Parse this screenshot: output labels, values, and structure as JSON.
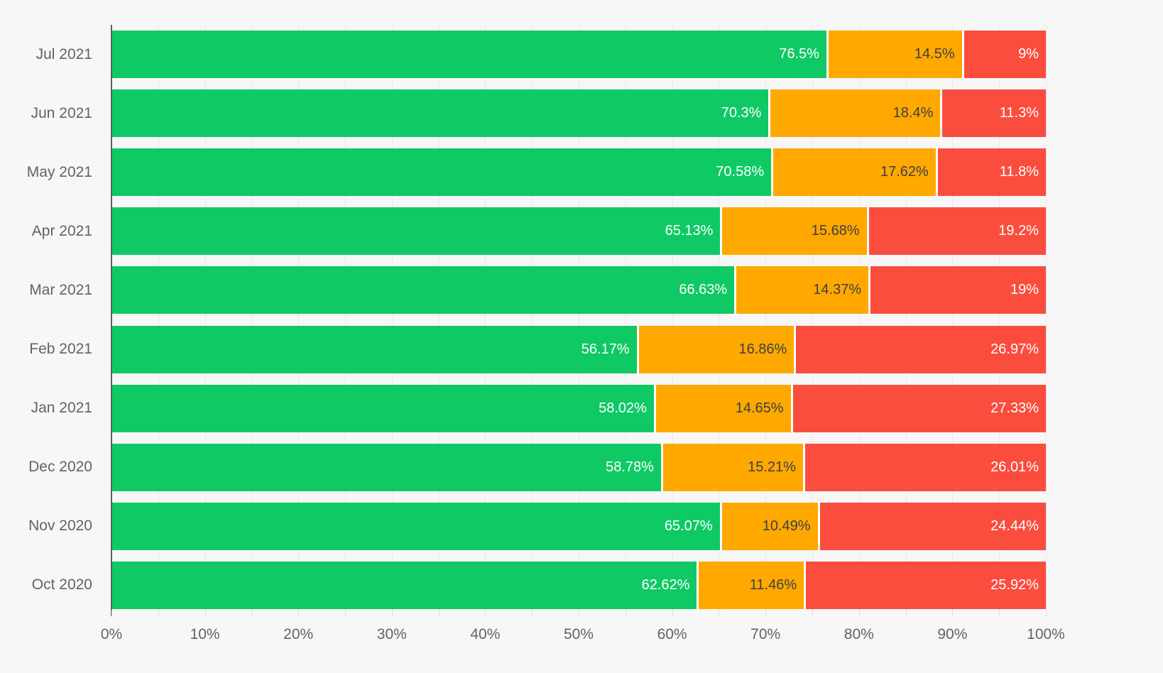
{
  "colors": {
    "background": "#f7f7f8",
    "green": "#0fc965",
    "orange": "#ffa800",
    "red": "#fa4d3e",
    "axis_line": "#5b6066",
    "gridline": "#e9e9ea",
    "axis_text": "#5f6368",
    "label_on_orange": "#3d3f42",
    "label_on_green_red": "#ffffff"
  },
  "chart_data": {
    "type": "bar",
    "orientation": "horizontal",
    "stacked": true,
    "title": "",
    "xlabel": "",
    "ylabel": "",
    "xlim": [
      0,
      100
    ],
    "x_tick_labels": [
      "0%",
      "10%",
      "20%",
      "30%",
      "40%",
      "50%",
      "60%",
      "70%",
      "80%",
      "90%",
      "100%"
    ],
    "x_minor_grid_step_percent": 5,
    "grid": true,
    "legend": "none",
    "categories": [
      "Jul 2021",
      "Jun 2021",
      "May 2021",
      "Apr 2021",
      "Mar 2021",
      "Feb 2021",
      "Jan 2021",
      "Dec 2020",
      "Nov 2020",
      "Oct 2020"
    ],
    "series": [
      {
        "name": "green",
        "color": "#0fc965",
        "values": [
          76.5,
          70.3,
          70.58,
          65.13,
          66.63,
          56.17,
          58.02,
          58.78,
          65.07,
          62.62
        ],
        "labels": [
          "76.5%",
          "70.3%",
          "70.58%",
          "65.13%",
          "66.63%",
          "56.17%",
          "58.02%",
          "58.78%",
          "65.07%",
          "62.62%"
        ]
      },
      {
        "name": "orange",
        "color": "#ffa800",
        "values": [
          14.5,
          18.4,
          17.62,
          15.68,
          14.37,
          16.86,
          14.65,
          15.21,
          10.49,
          11.46
        ],
        "labels": [
          "14.5%",
          "18.4%",
          "17.62%",
          "15.68%",
          "14.37%",
          "16.86%",
          "14.65%",
          "15.21%",
          "10.49%",
          "11.46%"
        ]
      },
      {
        "name": "red",
        "color": "#fa4d3e",
        "values": [
          9,
          11.3,
          11.8,
          19.2,
          19,
          26.97,
          27.33,
          26.01,
          24.44,
          25.92
        ],
        "labels": [
          "9%",
          "11.3%",
          "11.8%",
          "19.2%",
          "19%",
          "26.97%",
          "27.33%",
          "26.01%",
          "24.44%",
          "25.92%"
        ]
      }
    ]
  }
}
